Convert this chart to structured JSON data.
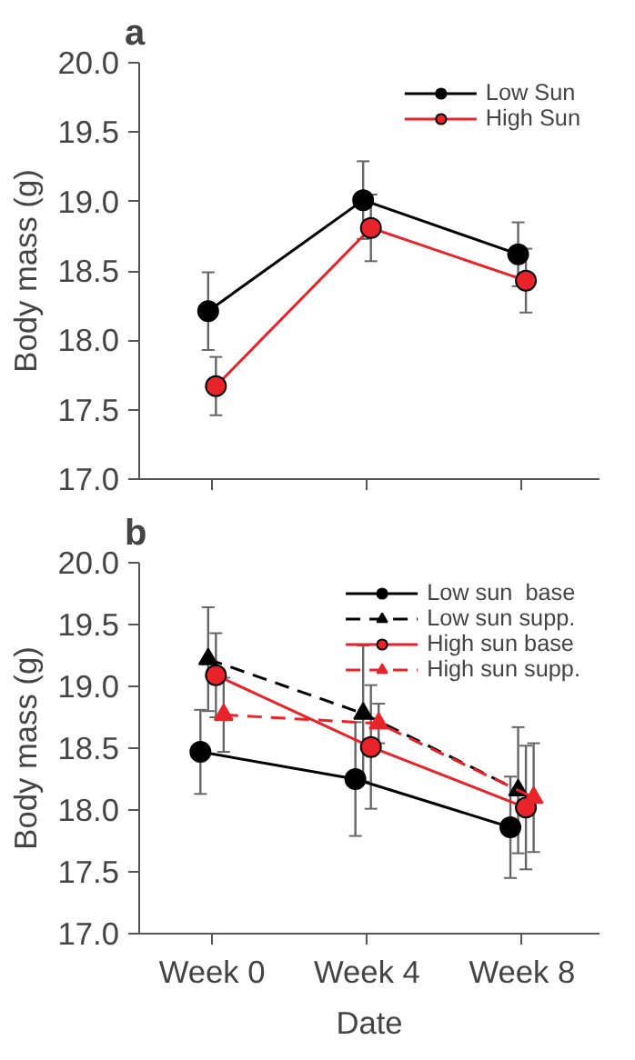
{
  "chart_data": [
    {
      "type": "line",
      "title": "a",
      "ylabel": "Body mass (g)",
      "categories": [
        null,
        null,
        null
      ],
      "ylim": [
        17.0,
        20.0
      ],
      "yticks": [
        {
          "value": 17.0,
          "label": "17.0"
        },
        {
          "value": 17.5,
          "label": "17.5"
        },
        {
          "value": 18.0,
          "label": "18.0"
        },
        {
          "value": 18.5,
          "label": "18.5"
        },
        {
          "value": 19.0,
          "label": "19.0"
        },
        {
          "value": 19.5,
          "label": "19.5"
        },
        {
          "value": 20.0,
          "label": "20.0"
        }
      ],
      "tick_labels": "y",
      "legend": "top right",
      "grid": false,
      "series": [
        {
          "name": "Low Sun",
          "color": "#000000",
          "values": [
            18.21,
            19.01,
            18.62
          ],
          "errors": [
            0.28,
            0.28,
            0.23
          ],
          "marker": "circle",
          "line_style": "solid"
        },
        {
          "name": "High Sun",
          "color": "#e8232a",
          "values": [
            17.67,
            18.81,
            18.43
          ],
          "errors": [
            0.21,
            0.24,
            0.23
          ],
          "marker": "circle",
          "line_style": "solid"
        }
      ]
    },
    {
      "type": "line",
      "title": "b",
      "ylabel": "Body mass (g)",
      "xlabel": "Date",
      "categories": [
        "Week 0",
        "Week 4",
        "Week 8"
      ],
      "ylim": [
        17.0,
        20.0
      ],
      "yticks": [
        {
          "value": 17.0,
          "label": "17.0"
        },
        {
          "value": 17.5,
          "label": "17.5"
        },
        {
          "value": 18.0,
          "label": "18.0"
        },
        {
          "value": 18.5,
          "label": "18.5"
        },
        {
          "value": 19.0,
          "label": "19.0"
        },
        {
          "value": 19.5,
          "label": "19.5"
        },
        {
          "value": 20.0,
          "label": "20.0"
        }
      ],
      "legend": "top right",
      "grid": false,
      "series": [
        {
          "name": "Low sun  base",
          "color": "#000000",
          "values": [
            18.47,
            18.25,
            17.86
          ],
          "errors": [
            0.34,
            0.46,
            0.41
          ],
          "marker": "circle",
          "line_style": "solid"
        },
        {
          "name": "Low sun supp.",
          "color": "#000000",
          "values": [
            19.22,
            18.78,
            18.16
          ],
          "errors": [
            0.42,
            0.55,
            0.51
          ],
          "marker": "triangle",
          "line_style": "dashed"
        },
        {
          "name": "High sun base",
          "color": "#e8232a",
          "values": [
            19.09,
            18.51,
            18.02
          ],
          "errors": [
            0.34,
            0.5,
            0.5
          ],
          "marker": "circle",
          "line_style": "solid"
        },
        {
          "name": "High sun supp.",
          "color": "#e8232a",
          "values": [
            18.77,
            18.7,
            18.1
          ],
          "errors": [
            0.3,
            0.16,
            0.44
          ],
          "marker": "triangle",
          "line_style": "dashed"
        }
      ]
    }
  ]
}
